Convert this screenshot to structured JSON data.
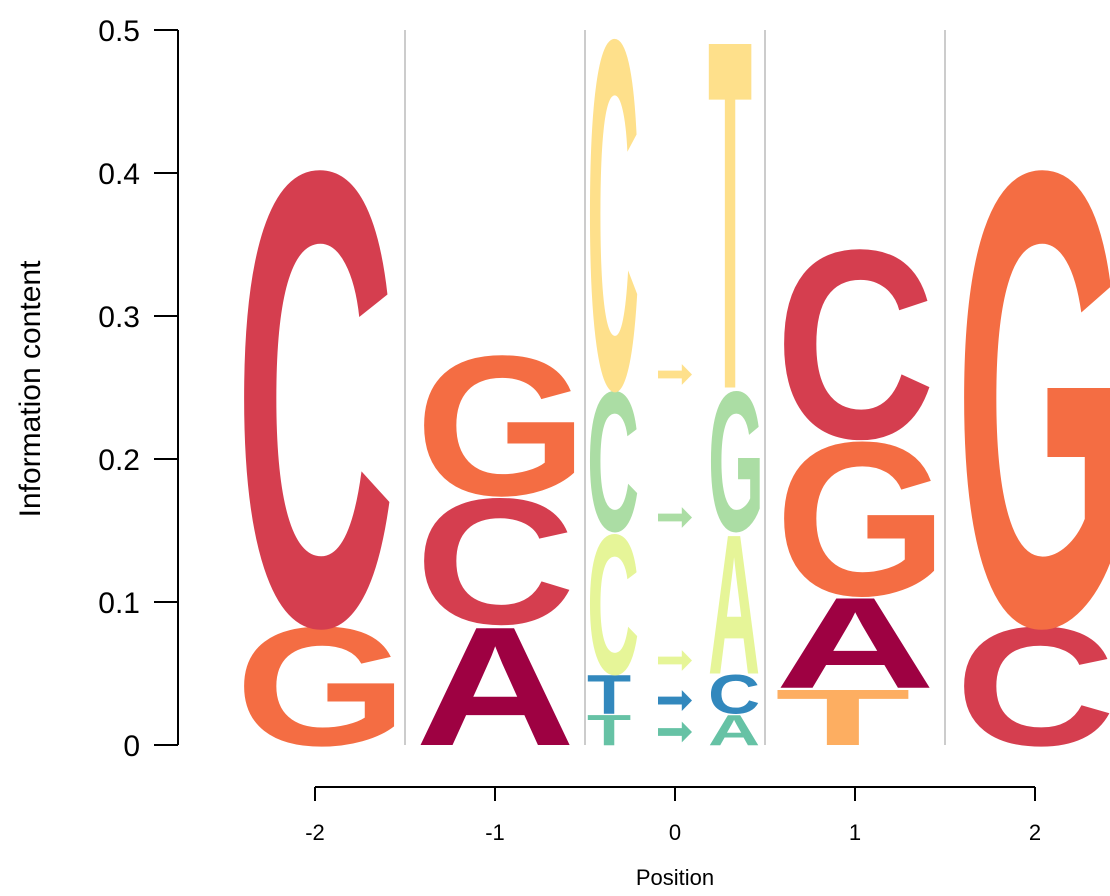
{
  "chart_data": {
    "type": "sequence-logo",
    "ylabel": "Information content",
    "xlabel": "Position",
    "ylim": [
      0,
      0.5
    ],
    "yticks": [
      "0",
      "0.1",
      "0.2",
      "0.3",
      "0.4",
      "0.5"
    ],
    "xticks": [
      "-2",
      "-1",
      "0",
      "1",
      "2"
    ],
    "colors": {
      "C": "#d53e4f",
      "G": "#f46d43",
      "A": "#9e0142",
      "T": "#fdae61",
      "C>T": "#fee08b",
      "C>G": "#abdda4",
      "C>A": "#e6f598",
      "T>C": "#3288bd",
      "T>A": "#66c2a5"
    },
    "positions": [
      {
        "position": "-2",
        "stack": [
          {
            "type": "base",
            "letter": "G",
            "height": 0.085
          },
          {
            "type": "base",
            "letter": "C",
            "height": 0.325
          }
        ]
      },
      {
        "position": "-1",
        "stack": [
          {
            "type": "base",
            "letter": "A",
            "height": 0.085
          },
          {
            "type": "base",
            "letter": "C",
            "height": 0.09
          },
          {
            "type": "base",
            "letter": "G",
            "height": 0.1
          }
        ]
      },
      {
        "position": "0",
        "stack": [
          {
            "type": "mutation",
            "from": "T",
            "to": "A",
            "key": "T>A",
            "height": 0.022
          },
          {
            "type": "mutation",
            "from": "T",
            "to": "C",
            "key": "T>C",
            "height": 0.028
          },
          {
            "type": "mutation",
            "from": "C",
            "to": "A",
            "key": "C>A",
            "height": 0.1
          },
          {
            "type": "mutation",
            "from": "C",
            "to": "G",
            "key": "C>G",
            "height": 0.1
          },
          {
            "type": "mutation",
            "from": "C",
            "to": "T",
            "key": "C>T",
            "height": 0.25
          }
        ]
      },
      {
        "position": "1",
        "stack": [
          {
            "type": "base",
            "letter": "T",
            "height": 0.04
          },
          {
            "type": "base",
            "letter": "A",
            "height": 0.065
          },
          {
            "type": "base",
            "letter": "G",
            "height": 0.11
          },
          {
            "type": "base",
            "letter": "C",
            "height": 0.135
          }
        ]
      },
      {
        "position": "2",
        "stack": [
          {
            "type": "base",
            "letter": "C",
            "height": 0.085
          },
          {
            "type": "base",
            "letter": "G",
            "height": 0.325
          }
        ]
      }
    ]
  }
}
